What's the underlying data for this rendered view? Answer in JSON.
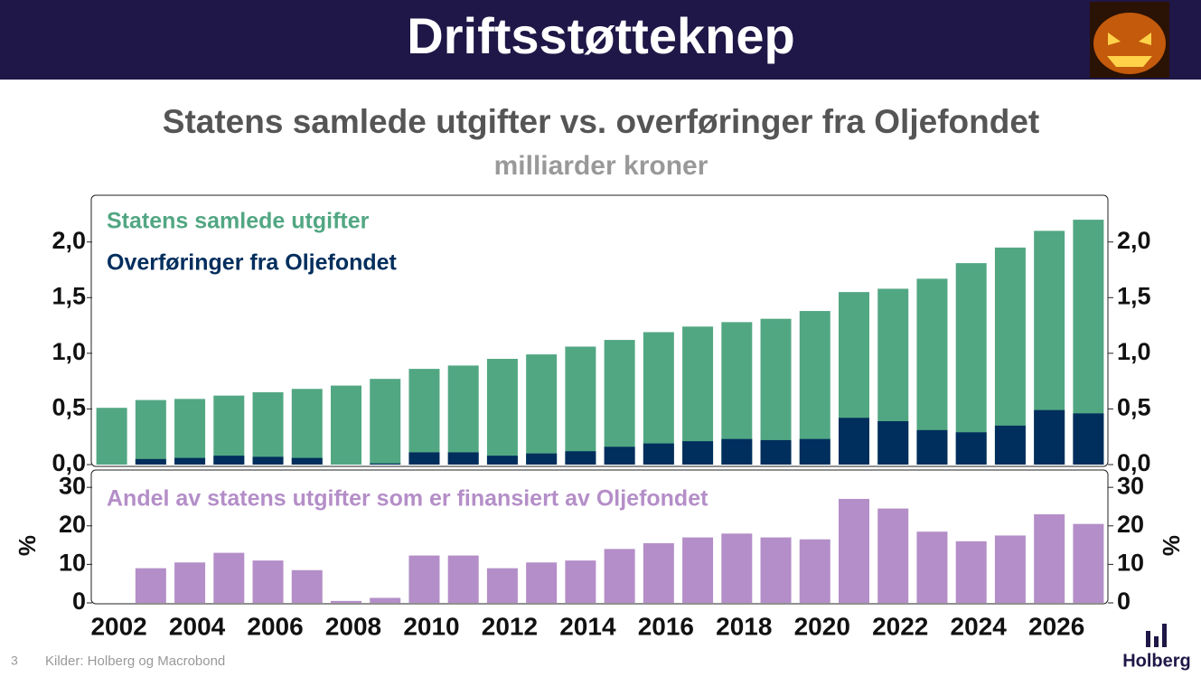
{
  "title": "Driftsstøtteknep",
  "footer": {
    "page": "3",
    "source": "Kilder: Holberg og Macrobond",
    "logo": "Holberg"
  },
  "chart_data": [
    {
      "type": "bar",
      "title": "Statens samlede utgifter vs. overføringer fra Oljefondet",
      "subtitle": "milliarder kroner",
      "categories": [
        "2002",
        null,
        "2004",
        null,
        "2006",
        null,
        "2008",
        null,
        "2010",
        null,
        "2012",
        null,
        "2014",
        null,
        "2016",
        null,
        "2018",
        null,
        "2020",
        null,
        "2022",
        null,
        "2024",
        null,
        "2026",
        null
      ],
      "overlay": true,
      "series": [
        {
          "name": "Statens samlede utgifter",
          "color": "#52a783",
          "values": [
            0.51,
            0.58,
            0.59,
            0.62,
            0.65,
            0.68,
            0.71,
            0.77,
            0.86,
            0.89,
            0.95,
            0.99,
            1.06,
            1.12,
            1.19,
            1.24,
            1.28,
            1.31,
            1.38,
            1.55,
            1.58,
            1.67,
            1.81,
            1.95,
            2.1,
            2.2
          ]
        },
        {
          "name": "Overføringer fra Oljefondet",
          "color": "#002e5d",
          "values": [
            0,
            0.05,
            0.06,
            0.08,
            0.07,
            0.06,
            0,
            0.01,
            0.11,
            0.11,
            0.08,
            0.1,
            0.12,
            0.16,
            0.19,
            0.21,
            0.23,
            0.22,
            0.23,
            0.42,
            0.39,
            0.31,
            0.29,
            0.35,
            0.49,
            0.46
          ]
        }
      ],
      "ylim": [
        0,
        2.42
      ],
      "yticks": [
        {
          "value": 0,
          "label": "0,0"
        },
        {
          "value": 0.5,
          "label": "0,5"
        },
        {
          "value": 1,
          "label": "1,0"
        },
        {
          "value": 1.5,
          "label": "1,5"
        },
        {
          "value": 2,
          "label": "2,0"
        }
      ]
    },
    {
      "type": "bar",
      "categories": [
        "2002",
        null,
        "2004",
        null,
        "2006",
        null,
        "2008",
        null,
        "2010",
        null,
        "2012",
        null,
        "2014",
        null,
        "2016",
        null,
        "2018",
        null,
        "2020",
        null,
        "2022",
        null,
        "2024",
        null,
        "2026",
        null
      ],
      "series": [
        {
          "name": "Andel av statens utgifter som er finansiert av Oljefondet",
          "color": "#b48ec8",
          "values": [
            0,
            9,
            10.5,
            13,
            11,
            8.5,
            0.5,
            1.3,
            12.3,
            12.3,
            9,
            10.5,
            11,
            14,
            15.5,
            17,
            18,
            17,
            16.5,
            27,
            24.5,
            18.5,
            16,
            17.5,
            23,
            20.5
          ]
        }
      ],
      "ylabel": "%",
      "ylim": [
        0,
        34.5
      ],
      "yticks": [
        0,
        10,
        20,
        30
      ]
    }
  ]
}
